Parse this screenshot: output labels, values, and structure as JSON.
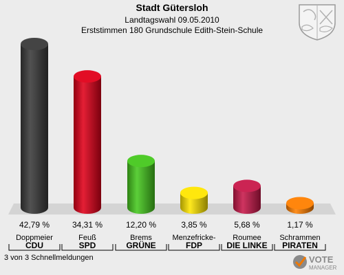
{
  "header": {
    "title": "Stadt Gütersloh",
    "subtitle": "Landtagswahl 09.05.2010",
    "detail": "Erststimmen 180 Grundschule Edith-Stein-Schule"
  },
  "footer": {
    "note": "3 von 3 Schnellmeldungen"
  },
  "logo": {
    "text": "VOTE",
    "subtext": "MANAGER",
    "icon": "vote-manager-icon"
  },
  "crest": {
    "icon": "coat-of-arms-icon"
  },
  "chart_data": {
    "type": "bar",
    "title": "Stadt Gütersloh",
    "categories": [
      "CDU",
      "SPD",
      "GRÜNE",
      "FDP",
      "DIE LINKE",
      "PIRATEN"
    ],
    "candidates": [
      "Doppmeier",
      "Feuß",
      "Brems",
      "Menzefricke-",
      "Roumee",
      "Schrammen"
    ],
    "values": [
      42.79,
      34.31,
      12.2,
      3.85,
      5.68,
      1.17
    ],
    "value_labels": [
      "42,79 %",
      "34,31 %",
      "12,20 %",
      "3,85 %",
      "5,68 %",
      "1,17 %"
    ],
    "colors": [
      "#3a3a3a",
      "#e0001a",
      "#46c81e",
      "#ffe600",
      "#c8184a",
      "#ff8000"
    ],
    "ylim": [
      0,
      42.79
    ],
    "grid": false,
    "legend": "none"
  }
}
